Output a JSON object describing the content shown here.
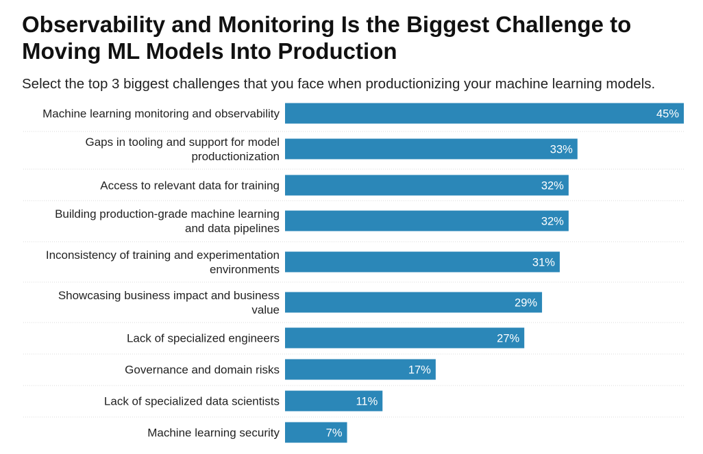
{
  "colors": {
    "bar": "#2b87b8",
    "grid": "#d9d9d9",
    "label": "#222222",
    "value_label": "#ffffff"
  },
  "chart_data": {
    "type": "bar",
    "orientation": "horizontal",
    "title": "Observability and Monitoring Is the Biggest Challenge to Moving ML Models Into Production",
    "subtitle": "Select the top 3 biggest challenges that you face when productionizing your machine learning models.",
    "xlim": [
      0,
      45
    ],
    "value_suffix": "%",
    "grid": false,
    "legend": "none",
    "categories": [
      [
        "Machine learning monitoring and observability"
      ],
      [
        "Gaps in tooling and support for model",
        "productionization"
      ],
      [
        "Access to relevant data for training"
      ],
      [
        "Building production-grade machine learning",
        "and data pipelines"
      ],
      [
        "Inconsistency of training and experimentation",
        "environments"
      ],
      [
        "Showcasing business impact and business",
        "value"
      ],
      [
        "Lack of specialized engineers"
      ],
      [
        "Governance and domain risks"
      ],
      [
        "Lack of specialized data scientists"
      ],
      [
        "Machine learning security"
      ]
    ],
    "values": [
      45,
      33,
      32,
      32,
      31,
      29,
      27,
      17,
      11,
      7
    ],
    "value_labels": [
      "45%",
      "33%",
      "32%",
      "32%",
      "31%",
      "29%",
      "27%",
      "17%",
      "11%",
      "7%"
    ]
  }
}
